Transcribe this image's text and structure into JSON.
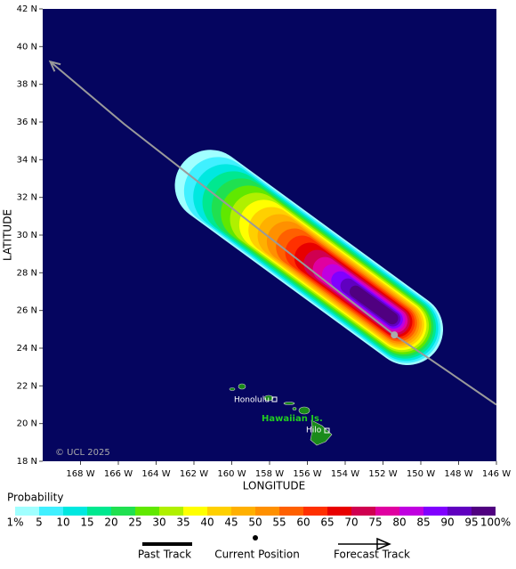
{
  "map": {
    "xlim": [
      -170,
      -146
    ],
    "ylim": [
      18,
      42
    ],
    "xticks": [
      {
        "value": -168,
        "label": "168 W"
      },
      {
        "value": -166,
        "label": "166 W"
      },
      {
        "value": -164,
        "label": "164 W"
      },
      {
        "value": -162,
        "label": "162 W"
      },
      {
        "value": -160,
        "label": "160 W"
      },
      {
        "value": -158,
        "label": "158 W"
      },
      {
        "value": -156,
        "label": "156 W"
      },
      {
        "value": -154,
        "label": "154 W"
      },
      {
        "value": -152,
        "label": "152 W"
      },
      {
        "value": -150,
        "label": "150 W"
      },
      {
        "value": -148,
        "label": "148 W"
      },
      {
        "value": -146,
        "label": "146 W"
      }
    ],
    "yticks": [
      {
        "value": 18,
        "label": "18 N"
      },
      {
        "value": 20,
        "label": "20 N"
      },
      {
        "value": 22,
        "label": "22 N"
      },
      {
        "value": 24,
        "label": "24 N"
      },
      {
        "value": 26,
        "label": "26 N"
      },
      {
        "value": 28,
        "label": "28 N"
      },
      {
        "value": 30,
        "label": "30 N"
      },
      {
        "value": 32,
        "label": "32 N"
      },
      {
        "value": 34,
        "label": "34 N"
      },
      {
        "value": 36,
        "label": "36 N"
      },
      {
        "value": 38,
        "label": "38 N"
      },
      {
        "value": 40,
        "label": "40 N"
      },
      {
        "value": 42,
        "label": "42 N"
      }
    ],
    "xlabel": "LONGITUDE",
    "ylabel": "LATITUDE",
    "background": "#05055f",
    "track": {
      "lon": [
        -146.0,
        -148.9,
        -151.4,
        -165.7,
        -169.6
      ],
      "lat": [
        21.0,
        23.0,
        24.7,
        35.9,
        39.2
      ],
      "color": "#9a9a9a"
    },
    "current": {
      "lon": -151.4,
      "lat": 24.7
    },
    "labels": {
      "honolulu": "Honolulu",
      "islands": "Hawaiian Is.",
      "hilo": "Hilo",
      "credit": "© UCL 2025"
    }
  },
  "legend": {
    "title": "Probability",
    "levels": [
      {
        "value": 1,
        "label": "1%"
      },
      5,
      10,
      15,
      20,
      25,
      30,
      35,
      40,
      45,
      50,
      55,
      60,
      65,
      70,
      75,
      80,
      85,
      90,
      95,
      {
        "value": 100,
        "label": "100%"
      }
    ],
    "colors": [
      "#a0ffff",
      "#40f0ff",
      "#00e8e0",
      "#00e890",
      "#20e050",
      "#60e800",
      "#b0f000",
      "#ffff00",
      "#ffd000",
      "#ffb000",
      "#ff9000",
      "#ff6000",
      "#ff3000",
      "#e80000",
      "#d00050",
      "#e000a0",
      "#c000e0",
      "#8000ff",
      "#6000c0",
      "#500080"
    ],
    "past_track": "Past Track",
    "current_position": "Current Position",
    "forecast_track": "Forecast Track"
  }
}
